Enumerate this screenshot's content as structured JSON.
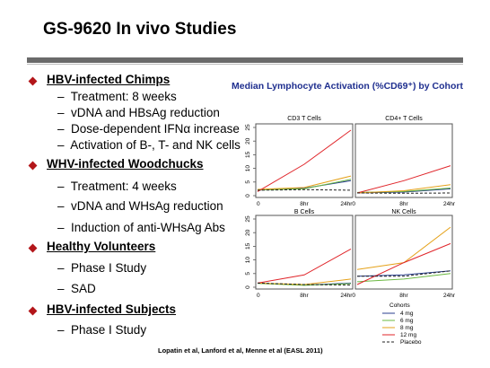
{
  "slide": {
    "title": "GS-9620 In vivo Studies",
    "citation": "Lopatin et al, Lanford et al, Menne et al (EASL 2011)"
  },
  "bullets": [
    {
      "heading": "HBV-infected Chimps",
      "items": [
        "Treatment: 8 weeks",
        "vDNA and HBsAg reduction",
        "Dose-dependent IFNα increase",
        "Activation of B-, T- and NK cells"
      ]
    },
    {
      "heading": "WHV-infected Woodchucks",
      "items": [
        "Treatment: 4 weeks",
        "vDNA and WHsAg reduction",
        "Induction of anti-WHsAg Abs"
      ]
    },
    {
      "heading": "Healthy Volunteers",
      "items": [
        "Phase I Study",
        "SAD"
      ]
    },
    {
      "heading": "HBV-infected Subjects",
      "items": [
        "Phase I Study"
      ]
    }
  ],
  "colors": {
    "bullet": "#b3161a",
    "chart_title": "#1f2f8f",
    "rule": "#6a6a6a"
  },
  "chart_data": {
    "type": "line",
    "title": "Median Lymphocyte Activation (%CD69⁺) by Cohort",
    "x": [
      "0",
      "8hr",
      "24hr"
    ],
    "ylim": [
      0,
      25
    ],
    "yticks": [
      0,
      5,
      10,
      15,
      20,
      25
    ],
    "legend_title": "Cohorts",
    "legend_position": "bottom-right",
    "panels": [
      {
        "name": "CD3 T Cells",
        "series": [
          {
            "name": "4 mg",
            "values": [
              2,
              2.7,
              5.5
            ]
          },
          {
            "name": "6 mg",
            "values": [
              2.1,
              2.5,
              6
            ]
          },
          {
            "name": "8 mg",
            "values": [
              2.3,
              3,
              7.2
            ]
          },
          {
            "name": "12 mg",
            "values": [
              1.5,
              11.5,
              24
            ]
          },
          {
            "name": "Placebo",
            "values": [
              2,
              2.2,
              2
            ]
          }
        ]
      },
      {
        "name": "CD4+ T Cells",
        "series": [
          {
            "name": "4 mg",
            "values": [
              1,
              1.3,
              2.5
            ]
          },
          {
            "name": "6 mg",
            "values": [
              1.2,
              1.5,
              2.8
            ]
          },
          {
            "name": "8 mg",
            "values": [
              1,
              1.8,
              4
            ]
          },
          {
            "name": "12 mg",
            "values": [
              1,
              5.5,
              11
            ]
          },
          {
            "name": "Placebo",
            "values": [
              1,
              0.9,
              1
            ]
          }
        ]
      },
      {
        "name": "B Cells",
        "series": [
          {
            "name": "4 mg",
            "values": [
              1.5,
              0.8,
              1.5
            ]
          },
          {
            "name": "6 mg",
            "values": [
              1.4,
              0.7,
              1.3
            ]
          },
          {
            "name": "8 mg",
            "values": [
              1.5,
              1,
              3
            ]
          },
          {
            "name": "12 mg",
            "values": [
              1.5,
              4.5,
              14
            ]
          },
          {
            "name": "Placebo",
            "values": [
              1.5,
              1,
              0.8
            ]
          }
        ]
      },
      {
        "name": "NK Cells",
        "series": [
          {
            "name": "4 mg",
            "values": [
              4,
              4.5,
              6
            ]
          },
          {
            "name": "6 mg",
            "values": [
              2,
              3,
              5
            ]
          },
          {
            "name": "8 mg",
            "values": [
              6.5,
              9,
              22
            ]
          },
          {
            "name": "12 mg",
            "values": [
              1,
              9,
              16
            ]
          },
          {
            "name": "Placebo",
            "values": [
              4,
              4,
              6
            ]
          }
        ]
      }
    ],
    "series_colors": {
      "4 mg": "#2a3f8f",
      "6 mg": "#6bb842",
      "8 mg": "#e5a21a",
      "12 mg": "#e0252a",
      "Placebo": "#222222"
    }
  }
}
